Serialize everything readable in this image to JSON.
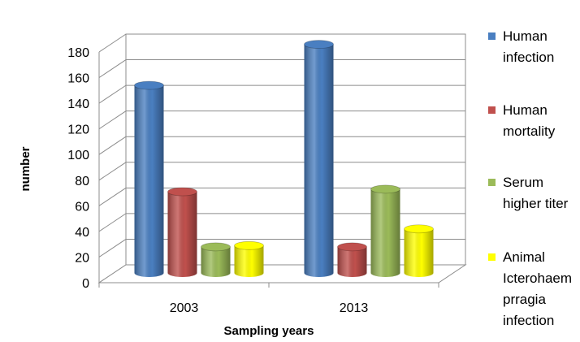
{
  "chart_data": {
    "type": "bar",
    "categories": [
      "2003",
      "2013"
    ],
    "series": [
      {
        "name": "Human infection",
        "legend_lines": [
          "Human",
          "infection"
        ],
        "values": [
          147,
          179
        ],
        "color": "#4a7fc1"
      },
      {
        "name": "Human mortality",
        "legend_lines": [
          "Human",
          "mortality"
        ],
        "values": [
          64,
          21
        ],
        "color": "#c0504d"
      },
      {
        "name": "Serum higher titer",
        "legend_lines": [
          "Serum",
          "higher titer"
        ],
        "values": [
          21,
          66
        ],
        "color": "#9bbb59"
      },
      {
        "name": "Animal Icterohaemprragia infection",
        "legend_lines": [
          "Animal",
          "Icterohaem",
          "prragia",
          "infection"
        ],
        "values": [
          22,
          35
        ],
        "color": "#ffff00"
      }
    ],
    "ylim": [
      0,
      180
    ],
    "yticks": [
      0,
      20,
      40,
      60,
      80,
      100,
      120,
      140,
      160,
      180
    ],
    "xlabel": "Sampling years",
    "ylabel": "number",
    "grid": true,
    "legend_position": "right"
  }
}
